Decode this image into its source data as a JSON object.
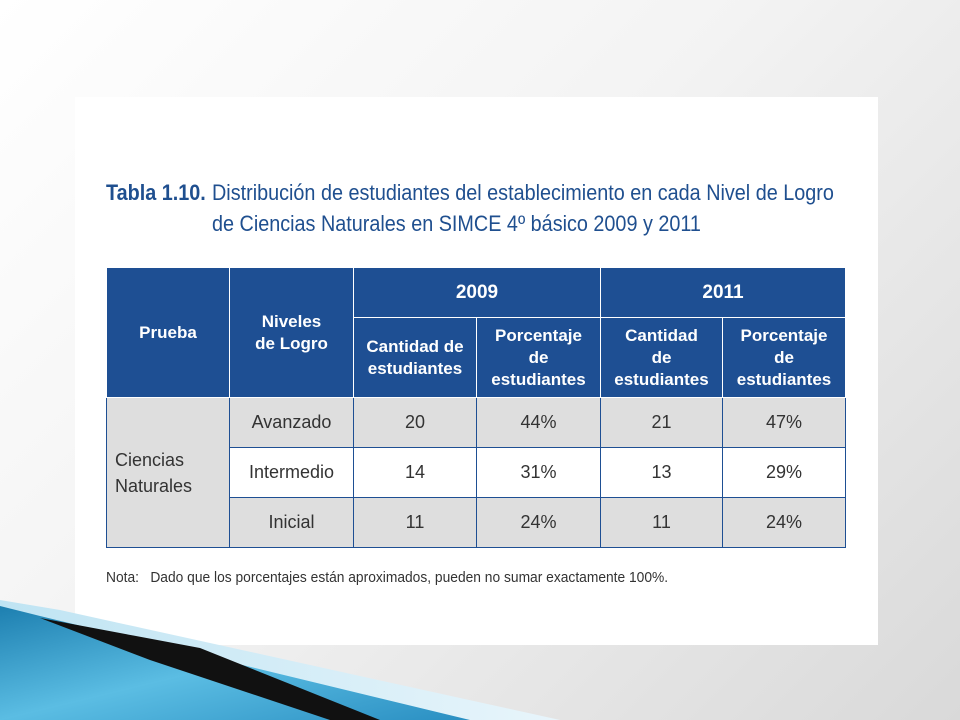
{
  "title": {
    "label": "Tabla 1.10.",
    "line1": "Distribución de estudiantes del establecimiento en cada Nivel de Logro",
    "line2": "de Ciencias Naturales en SIMCE 4º básico 2009 y 2011"
  },
  "table": {
    "headers": {
      "prueba": "Prueba",
      "niveles": "Niveles de Logro",
      "year1": "2009",
      "year2": "2011",
      "cantidad": "Cantidad de estudiantes",
      "porcentaje": "Porcentaje de estudiantes"
    },
    "prueba_name": "Ciencias Naturales",
    "rows": [
      {
        "nivel": "Avanzado",
        "c2009": "20",
        "p2009": "44%",
        "c2011": "21",
        "p2011": "47%"
      },
      {
        "nivel": "Intermedio",
        "c2009": "14",
        "p2009": "31%",
        "c2011": "13",
        "p2011": "29%"
      },
      {
        "nivel": "Inicial",
        "c2009": "11",
        "p2009": "24%",
        "c2011": "11",
        "p2011": "24%"
      }
    ]
  },
  "note": {
    "label": "Nota:",
    "text": "Dado que los porcentajes están aproximados, pueden no sumar exactamente 100%."
  },
  "colors": {
    "header_blue": "#1e4f93",
    "title_blue": "#1f4f8f",
    "row_grey": "#dedede",
    "decor_teal": "#3fa9d4"
  }
}
